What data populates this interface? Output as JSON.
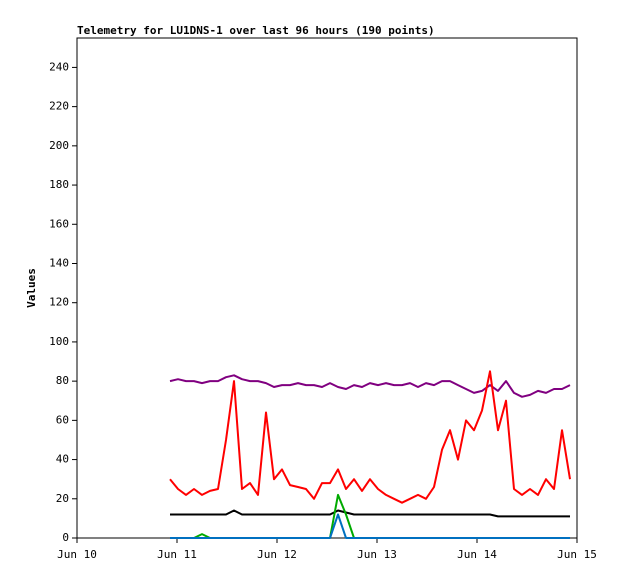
{
  "chart_data": {
    "type": "line",
    "title": "Telemetry for LU1DNS-1 over last 96 hours (190 points)",
    "y_label": "Values",
    "xlim": [
      0,
      5
    ],
    "xticks": [
      {
        "value": 0,
        "label": "Jun 10"
      },
      {
        "value": 1,
        "label": "Jun 11"
      },
      {
        "value": 2,
        "label": "Jun 12"
      },
      {
        "value": 3,
        "label": "Jun 13"
      },
      {
        "value": 4,
        "label": "Jun 14"
      },
      {
        "value": 5,
        "label": "Jun 15"
      }
    ],
    "ylim": [
      0,
      255
    ],
    "yticks": [
      0,
      20,
      40,
      60,
      80,
      100,
      120,
      140,
      160,
      180,
      200,
      220,
      240
    ],
    "grid": false,
    "x": [
      0.93,
      1.01,
      1.09,
      1.17,
      1.25,
      1.33,
      1.41,
      1.49,
      1.57,
      1.65,
      1.73,
      1.81,
      1.89,
      1.97,
      2.05,
      2.13,
      2.21,
      2.29,
      2.37,
      2.45,
      2.53,
      2.61,
      2.69,
      2.77,
      2.85,
      2.93,
      3.01,
      3.09,
      3.17,
      3.25,
      3.33,
      3.41,
      3.49,
      3.57,
      3.65,
      3.73,
      3.81,
      3.89,
      3.97,
      4.05,
      4.13,
      4.21,
      4.29,
      4.37,
      4.45,
      4.53,
      4.61,
      4.69,
      4.77,
      4.85,
      4.93
    ],
    "series": [
      {
        "color": "#800080",
        "values": [
          80,
          81,
          80,
          80,
          79,
          80,
          80,
          82,
          83,
          81,
          80,
          80,
          79,
          77,
          78,
          78,
          79,
          78,
          78,
          77,
          79,
          77,
          76,
          78,
          77,
          79,
          78,
          79,
          78,
          78,
          79,
          77,
          79,
          78,
          80,
          80,
          78,
          76,
          74,
          75,
          78,
          75,
          80,
          74,
          72,
          73,
          75,
          74,
          76,
          76,
          78
        ]
      },
      {
        "color": "#ff0000",
        "values": [
          30,
          25,
          22,
          25,
          22,
          24,
          25,
          50,
          80,
          25,
          28,
          22,
          64,
          30,
          35,
          27,
          26,
          25,
          20,
          28,
          28,
          35,
          25,
          30,
          24,
          30,
          25,
          22,
          20,
          18,
          20,
          22,
          20,
          26,
          45,
          55,
          40,
          60,
          55,
          65,
          85,
          55,
          70,
          25,
          22,
          25,
          22,
          30,
          25,
          55,
          30
        ]
      },
      {
        "color": "#000000",
        "values": [
          12,
          12,
          12,
          12,
          12,
          12,
          12,
          12,
          14,
          12,
          12,
          12,
          12,
          12,
          12,
          12,
          12,
          12,
          12,
          12,
          12,
          14,
          13,
          12,
          12,
          12,
          12,
          12,
          12,
          12,
          12,
          12,
          12,
          12,
          12,
          12,
          12,
          12,
          12,
          12,
          12,
          11,
          11,
          11,
          11,
          11,
          11,
          11,
          11,
          11,
          11
        ]
      },
      {
        "color": "#00aa00",
        "values": [
          0,
          0,
          0,
          0,
          2,
          0,
          0,
          0,
          0,
          0,
          0,
          0,
          0,
          0,
          0,
          0,
          0,
          0,
          0,
          0,
          0,
          22,
          12,
          0,
          0,
          0,
          0,
          0,
          0,
          0,
          0,
          0,
          0,
          0,
          0,
          0,
          0,
          0,
          0,
          0,
          0,
          0,
          0,
          0,
          0,
          0,
          0,
          0,
          0,
          0,
          0
        ]
      },
      {
        "color": "#0070c0",
        "values": [
          0,
          0,
          0,
          0,
          0,
          0,
          0,
          0,
          0,
          0,
          0,
          0,
          0,
          0,
          0,
          0,
          0,
          0,
          0,
          0,
          0,
          12,
          0,
          0,
          0,
          0,
          0,
          0,
          0,
          0,
          0,
          0,
          0,
          0,
          0,
          0,
          0,
          0,
          0,
          0,
          0,
          0,
          0,
          0,
          0,
          0,
          0,
          0,
          0,
          0,
          0
        ]
      }
    ]
  }
}
